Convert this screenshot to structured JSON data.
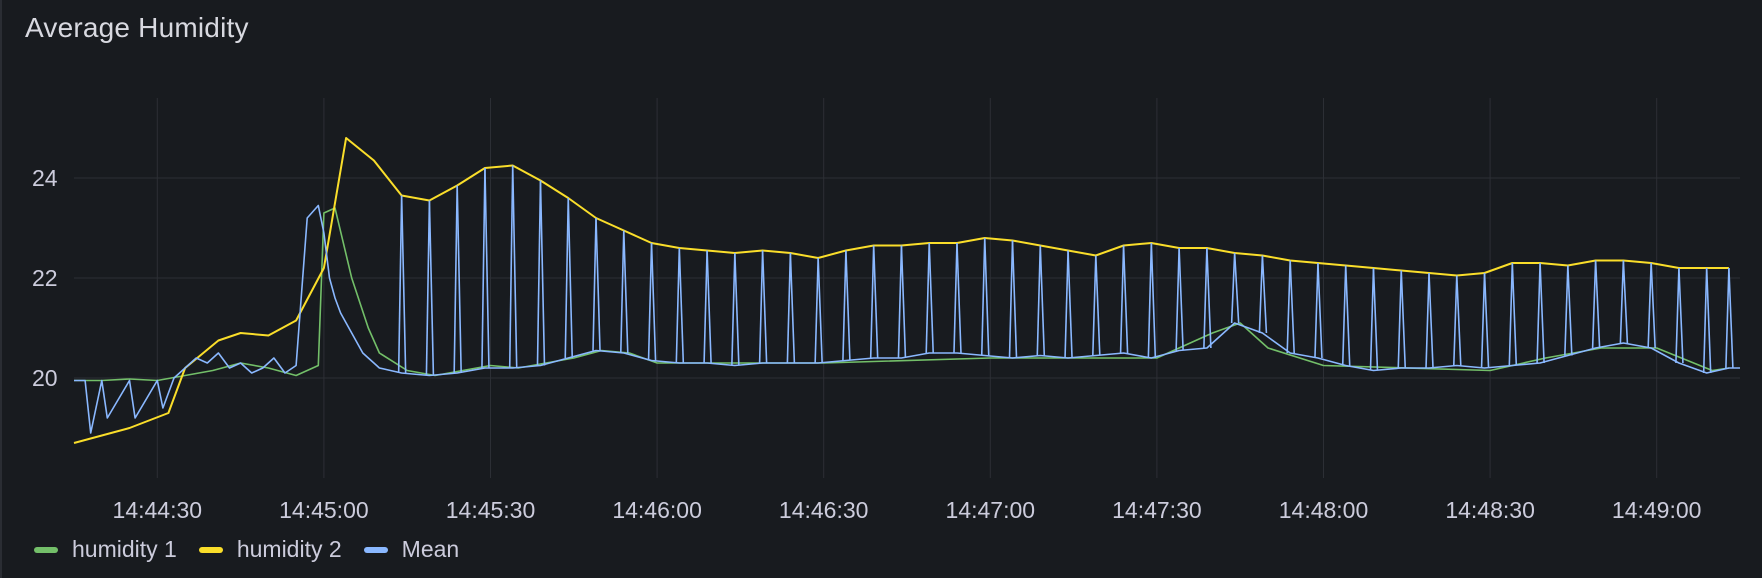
{
  "panel": {
    "title": "Average Humidity"
  },
  "chart_data": {
    "type": "line",
    "title": "Average Humidity",
    "xlabel": "",
    "ylabel": "",
    "x_ticks": [
      "14:44:30",
      "14:45:00",
      "14:45:30",
      "14:46:00",
      "14:46:30",
      "14:47:00",
      "14:47:30",
      "14:48:00",
      "14:48:30",
      "14:49:00"
    ],
    "y_ticks": [
      20,
      22,
      24
    ],
    "xlim": [
      "14:44:15",
      "14:49:15"
    ],
    "ylim": [
      18,
      25.6
    ],
    "grid": true,
    "legend_position": "bottom-left",
    "series": [
      {
        "name": "humidity 1",
        "color": "#73bf69",
        "x": [
          "14:44:15",
          "14:44:20",
          "14:44:25",
          "14:44:30",
          "14:44:35",
          "14:44:40",
          "14:44:45",
          "14:44:50",
          "14:44:55",
          "14:44:59",
          "14:45:00",
          "14:45:02",
          "14:45:05",
          "14:45:08",
          "14:45:10",
          "14:45:15",
          "14:45:20",
          "14:45:25",
          "14:45:30",
          "14:45:35",
          "14:45:40",
          "14:45:45",
          "14:45:50",
          "14:45:55",
          "14:46:00",
          "14:46:30",
          "14:47:00",
          "14:47:30",
          "14:47:40",
          "14:47:45",
          "14:47:50",
          "14:48:00",
          "14:48:30",
          "14:48:40",
          "14:48:50",
          "14:49:00",
          "14:49:10",
          "14:49:13"
        ],
        "values": [
          19.95,
          19.95,
          19.98,
          19.95,
          20.05,
          20.15,
          20.3,
          20.2,
          20.05,
          20.25,
          23.3,
          23.4,
          22.0,
          21.0,
          20.5,
          20.15,
          20.05,
          20.15,
          20.25,
          20.2,
          20.3,
          20.4,
          20.55,
          20.5,
          20.3,
          20.3,
          20.4,
          20.4,
          20.9,
          21.1,
          20.6,
          20.25,
          20.15,
          20.4,
          20.6,
          20.6,
          20.15,
          20.2
        ]
      },
      {
        "name": "humidity 2",
        "color": "#fade2a",
        "x": [
          "14:44:15",
          "14:44:25",
          "14:44:32",
          "14:44:35",
          "14:44:41",
          "14:44:45",
          "14:44:50",
          "14:44:55",
          "14:45:00",
          "14:45:04",
          "14:45:09",
          "14:45:14",
          "14:45:19",
          "14:45:24",
          "14:45:29",
          "14:45:34",
          "14:45:39",
          "14:45:44",
          "14:45:49",
          "14:45:54",
          "14:45:59",
          "14:46:04",
          "14:46:09",
          "14:46:14",
          "14:46:19",
          "14:46:24",
          "14:46:29",
          "14:46:34",
          "14:46:39",
          "14:46:44",
          "14:46:49",
          "14:46:54",
          "14:46:59",
          "14:47:04",
          "14:47:09",
          "14:47:14",
          "14:47:19",
          "14:47:24",
          "14:47:29",
          "14:47:34",
          "14:47:39",
          "14:47:44",
          "14:47:49",
          "14:47:54",
          "14:47:59",
          "14:48:04",
          "14:48:09",
          "14:48:14",
          "14:48:19",
          "14:48:24",
          "14:48:29",
          "14:48:34",
          "14:48:39",
          "14:48:44",
          "14:48:49",
          "14:48:54",
          "14:48:59",
          "14:49:04",
          "14:49:09",
          "14:49:13"
        ],
        "values": [
          18.7,
          19.0,
          19.3,
          20.2,
          20.75,
          20.9,
          20.85,
          21.15,
          22.2,
          24.8,
          24.35,
          23.65,
          23.55,
          23.85,
          24.2,
          24.25,
          23.95,
          23.6,
          23.2,
          22.95,
          22.7,
          22.6,
          22.55,
          22.5,
          22.55,
          22.5,
          22.4,
          22.55,
          22.65,
          22.65,
          22.7,
          22.7,
          22.8,
          22.75,
          22.65,
          22.55,
          22.45,
          22.65,
          22.7,
          22.6,
          22.6,
          22.5,
          22.45,
          22.35,
          22.3,
          22.25,
          22.2,
          22.15,
          22.1,
          22.05,
          22.1,
          22.3,
          22.3,
          22.25,
          22.35,
          22.35,
          22.3,
          22.2,
          22.2,
          22.2
        ]
      },
      {
        "name": "Mean",
        "color": "#8ab8ff",
        "x": [
          "14:44:15",
          "14:44:17",
          "14:44:18",
          "14:44:20",
          "14:44:21",
          "14:44:25",
          "14:44:26",
          "14:44:30",
          "14:44:31",
          "14:44:33",
          "14:44:35",
          "14:44:37",
          "14:44:39",
          "14:44:41",
          "14:44:43",
          "14:44:45",
          "14:44:47",
          "14:44:49",
          "14:44:51",
          "14:44:53",
          "14:44:55",
          "14:44:57",
          "14:44:59",
          "14:45:00",
          "14:45:01",
          "14:45:02",
          "14:45:03",
          "14:45:05",
          "14:45:07",
          "14:45:08",
          "14:45:09",
          "14:45:10",
          "14:45:12",
          "14:45:14",
          "14:45:19",
          "14:45:24",
          "14:45:29",
          "14:45:34",
          "14:45:39",
          "14:45:44",
          "14:45:49",
          "14:45:54",
          "14:45:59",
          "14:46:04",
          "14:46:09",
          "14:46:14",
          "14:46:19",
          "14:46:24",
          "14:46:29",
          "14:46:34",
          "14:46:39",
          "14:46:44",
          "14:46:49",
          "14:46:54",
          "14:46:59",
          "14:47:04",
          "14:47:09",
          "14:47:14",
          "14:47:19",
          "14:47:24",
          "14:47:29",
          "14:47:34",
          "14:47:39",
          "14:47:44",
          "14:47:49",
          "14:47:54",
          "14:47:59",
          "14:48:04",
          "14:48:09",
          "14:48:14",
          "14:48:19",
          "14:48:24",
          "14:48:29",
          "14:48:34",
          "14:48:39",
          "14:48:44",
          "14:48:49",
          "14:48:54",
          "14:48:59",
          "14:49:04",
          "14:49:09",
          "14:49:13",
          "14:49:15"
        ],
        "values": [
          19.95,
          19.95,
          18.9,
          19.95,
          19.2,
          19.95,
          19.2,
          19.95,
          19.4,
          20.0,
          20.2,
          20.4,
          20.3,
          20.5,
          20.2,
          20.3,
          20.1,
          20.2,
          20.4,
          20.1,
          20.25,
          23.2,
          23.45,
          22.9,
          22.0,
          21.6,
          21.3,
          20.9,
          20.5,
          20.4,
          20.3,
          20.2,
          20.15,
          20.1,
          20.05,
          20.1,
          20.2,
          20.2,
          20.25,
          20.4,
          20.55,
          20.5,
          20.35,
          20.3,
          20.3,
          20.25,
          20.3,
          20.3,
          20.3,
          20.35,
          20.4,
          20.4,
          20.5,
          20.5,
          20.45,
          20.4,
          20.45,
          20.4,
          20.45,
          20.5,
          20.4,
          20.55,
          20.6,
          21.1,
          20.9,
          20.5,
          20.4,
          20.25,
          20.15,
          20.2,
          20.2,
          20.25,
          20.2,
          20.25,
          20.3,
          20.45,
          20.6,
          20.7,
          20.6,
          20.3,
          20.1,
          20.2,
          20.2
        ]
      }
    ]
  }
}
